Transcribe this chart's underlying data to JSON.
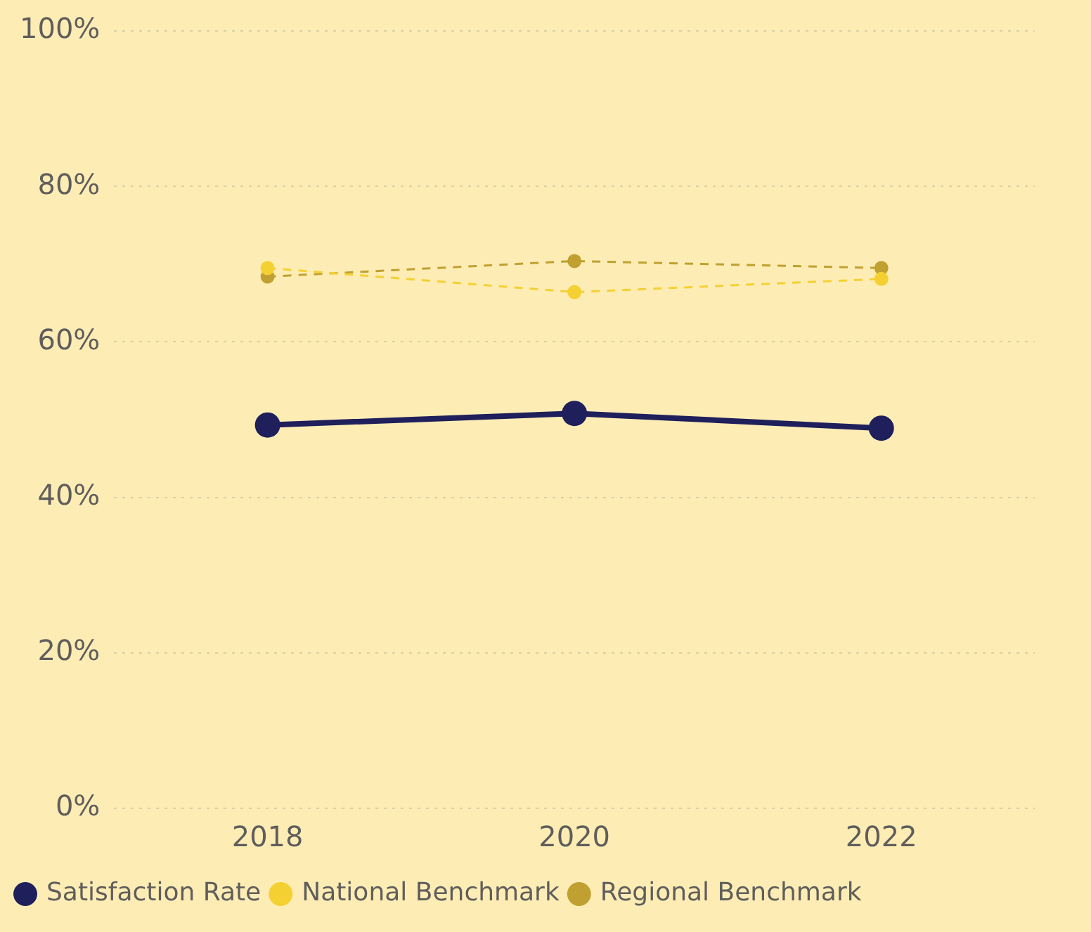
{
  "chart_data": {
    "type": "line",
    "categories": [
      "2018",
      "2020",
      "2022"
    ],
    "series": [
      {
        "name": "Satisfaction Rate",
        "color": "#1f1f5c",
        "values": [
          49.3,
          50.8,
          48.9
        ],
        "line_style": "solid"
      },
      {
        "name": "National Benchmark",
        "color": "#f5d033",
        "values": [
          69.5,
          66.4,
          68.1
        ],
        "line_style": "dashed"
      },
      {
        "name": "Regional Benchmark",
        "color": "#c0a030",
        "values": [
          68.4,
          70.4,
          69.5
        ],
        "line_style": "dashed"
      }
    ],
    "ylim": [
      0,
      100
    ],
    "yticks": [
      {
        "value": 0,
        "label": "0%"
      },
      {
        "value": 20,
        "label": "20%"
      },
      {
        "value": 40,
        "label": "40%"
      },
      {
        "value": 60,
        "label": "60%"
      },
      {
        "value": 80,
        "label": "80%"
      },
      {
        "value": 100,
        "label": "100%"
      }
    ],
    "grid": "y",
    "legend": "bottom left",
    "marker": "circle"
  }
}
